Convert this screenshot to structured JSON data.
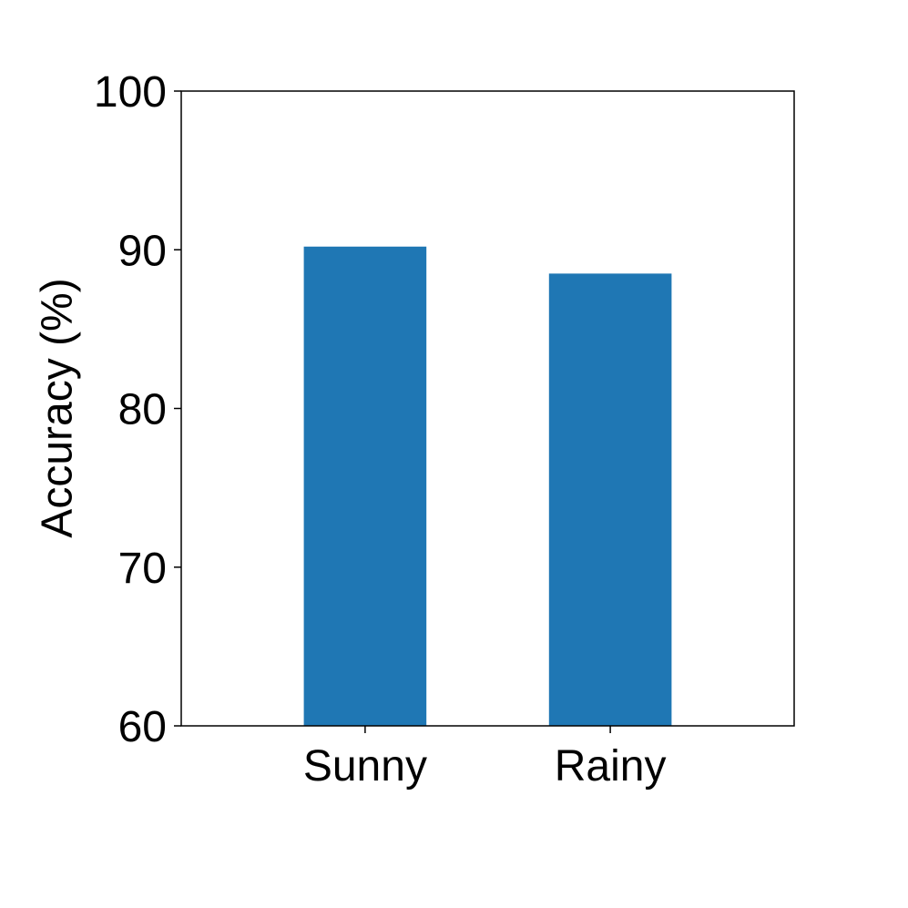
{
  "chart_data": {
    "type": "bar",
    "ylabel": "Accuracy (%)",
    "categories": [
      "Sunny",
      "Rainy"
    ],
    "values": [
      90.2,
      88.5
    ],
    "color": "#1f77b4",
    "ylim": [
      60,
      100
    ],
    "yticks": [
      60,
      70,
      80,
      90,
      100
    ],
    "grid": false
  }
}
